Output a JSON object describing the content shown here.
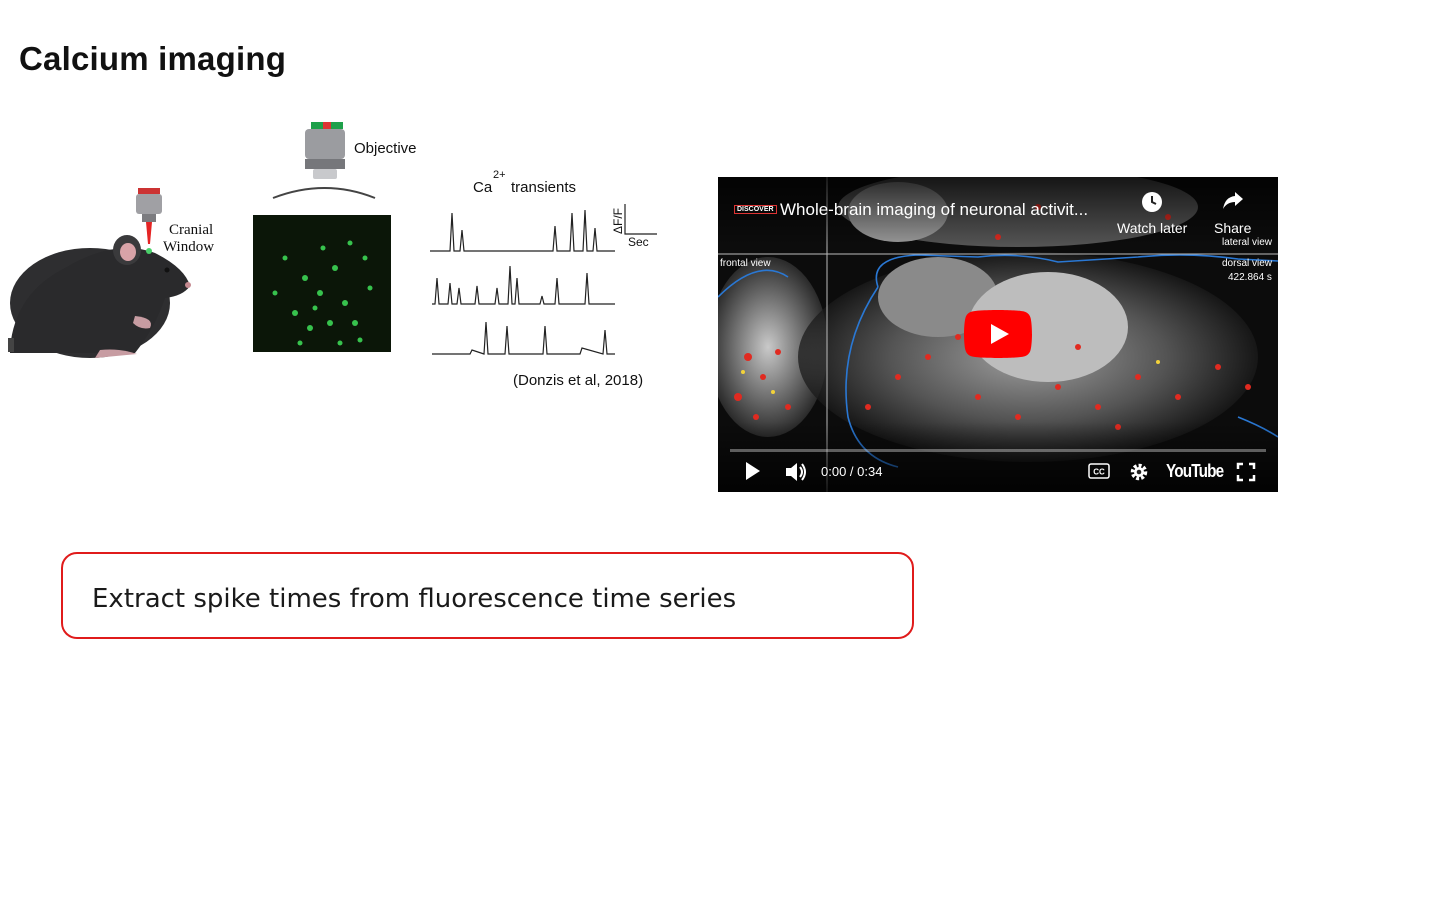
{
  "slide": {
    "title": "Calcium imaging"
  },
  "figure": {
    "cranial_label_1": "Cranial",
    "cranial_label_2": "Window",
    "objective_label": "Objective",
    "ca_label": "Ca",
    "ca_superscript": "2+",
    "transients_label": "transients",
    "scale_y_label": "ΔF/F",
    "scale_x_label": "Sec",
    "citation": "(Donzis et al, 2018)"
  },
  "video": {
    "channel_badge": "DISCOVER",
    "title": "Whole-brain imaging of neuronal activit...",
    "watch_later_label": "Watch later",
    "share_label": "Share",
    "lateral_view_label": "lateral view",
    "frontal_view_label": "frontal view",
    "dorsal_view_label": "dorsal view",
    "timestamp_overlay": "422.864 s",
    "time_display": "0:00 / 0:34",
    "youtube_logo": "YouTube",
    "progress": 0.0,
    "icons": [
      "play-icon",
      "volume-icon",
      "cc-icon",
      "settings-icon",
      "fullscreen-icon",
      "clock-icon",
      "share-icon"
    ]
  },
  "callout": {
    "text": "Extract spike times from fluorescence time series",
    "border_color": "#e01b1b"
  }
}
